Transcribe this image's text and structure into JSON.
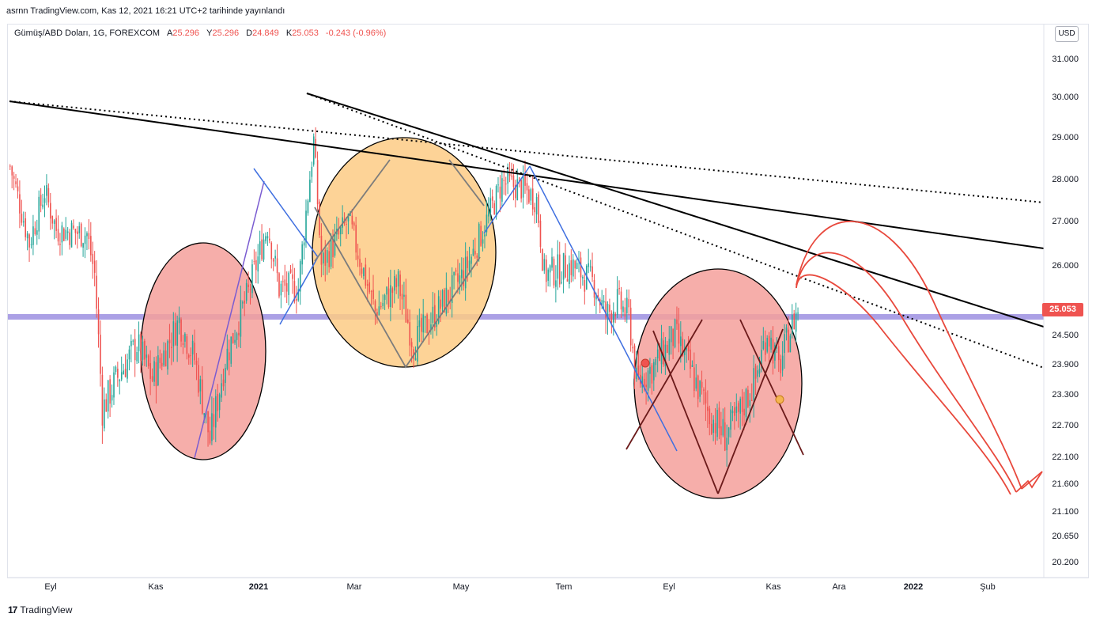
{
  "header": {
    "published_line": "asrnn TradingView.com, Kas 12, 2021 16:21 UTC+2 tarihinde yayınlandı"
  },
  "symbol": {
    "title": "Gümüş/ABD Doları, 1G, FOREXCOM",
    "a_label": "A",
    "a_value": "25.296",
    "y_label": "Y",
    "y_value": "25.296",
    "d_label": "D",
    "d_value": "24.849",
    "k_label": "K",
    "k_value": "25.053",
    "change": "-0.243 (-0.96%)"
  },
  "currency_button": "USD",
  "last_price": "25.053",
  "footer": {
    "brand": "TradingView",
    "logo": "17"
  },
  "colors": {
    "up": "#26a69a",
    "down": "#ef5350",
    "support_band": "#9c8fe0",
    "circle_red": "#f4a09b",
    "circle_orange": "#fdcb85",
    "trend_blue": "#3f6fe0",
    "projection_red": "#e8483c"
  },
  "chart_data": {
    "type": "candlestick",
    "instrument": "Gümüş/ABD Doları",
    "interval": "1G",
    "ylim": [
      19.9,
      31.6
    ],
    "y_ticks": [
      "31.000",
      "30.000",
      "29.000",
      "28.000",
      "27.000",
      "26.000",
      "24.500",
      "23.900",
      "23.300",
      "22.700",
      "22.100",
      "21.600",
      "21.100",
      "20.650",
      "20.200"
    ],
    "x_ticks": [
      "Eyl",
      "Kas",
      "2021",
      "Mar",
      "May",
      "Tem",
      "Eyl",
      "Kas",
      "Ara",
      "2022",
      "Şub"
    ],
    "x_ticks_bold": [
      "2021",
      "2022"
    ],
    "path": [
      {
        "t": 0,
        "p": 28.3
      },
      {
        "t": 10,
        "p": 26.5
      },
      {
        "t": 18,
        "p": 27.7
      },
      {
        "t": 24,
        "p": 26.8
      },
      {
        "t": 40,
        "p": 26.7
      },
      {
        "t": 44,
        "p": 25.8
      },
      {
        "t": 48,
        "p": 23.0
      },
      {
        "t": 54,
        "p": 23.5
      },
      {
        "t": 66,
        "p": 24.3
      },
      {
        "t": 74,
        "p": 23.6
      },
      {
        "t": 88,
        "p": 24.8
      },
      {
        "t": 96,
        "p": 24.0
      },
      {
        "t": 104,
        "p": 22.4
      },
      {
        "t": 112,
        "p": 24.0
      },
      {
        "t": 124,
        "p": 25.4
      },
      {
        "t": 134,
        "p": 26.9
      },
      {
        "t": 140,
        "p": 25.5
      },
      {
        "t": 150,
        "p": 25.5
      },
      {
        "t": 158,
        "p": 28.9
      },
      {
        "t": 162,
        "p": 26.0
      },
      {
        "t": 176,
        "p": 27.0
      },
      {
        "t": 190,
        "p": 25.0
      },
      {
        "t": 202,
        "p": 25.6
      },
      {
        "t": 210,
        "p": 24.3
      },
      {
        "t": 222,
        "p": 25.0
      },
      {
        "t": 236,
        "p": 25.8
      },
      {
        "t": 248,
        "p": 27.0
      },
      {
        "t": 256,
        "p": 27.9
      },
      {
        "t": 266,
        "p": 27.8
      },
      {
        "t": 274,
        "p": 27.5
      },
      {
        "t": 278,
        "p": 25.8
      },
      {
        "t": 292,
        "p": 26.0
      },
      {
        "t": 304,
        "p": 25.6
      },
      {
        "t": 310,
        "p": 24.9
      },
      {
        "t": 316,
        "p": 25.2
      },
      {
        "t": 322,
        "p": 24.9
      },
      {
        "t": 326,
        "p": 23.5
      },
      {
        "t": 336,
        "p": 23.9
      },
      {
        "t": 346,
        "p": 24.5
      },
      {
        "t": 356,
        "p": 23.6
      },
      {
        "t": 364,
        "p": 22.9
      },
      {
        "t": 372,
        "p": 22.5
      },
      {
        "t": 378,
        "p": 22.8
      },
      {
        "t": 388,
        "p": 23.6
      },
      {
        "t": 394,
        "p": 24.6
      },
      {
        "t": 400,
        "p": 23.8
      },
      {
        "t": 406,
        "p": 24.6
      },
      {
        "t": 410,
        "p": 25.05
      }
    ],
    "annotations": {
      "support_level": 24.97,
      "projection_targets": [
        21.48,
        21.58,
        21.78
      ]
    }
  }
}
